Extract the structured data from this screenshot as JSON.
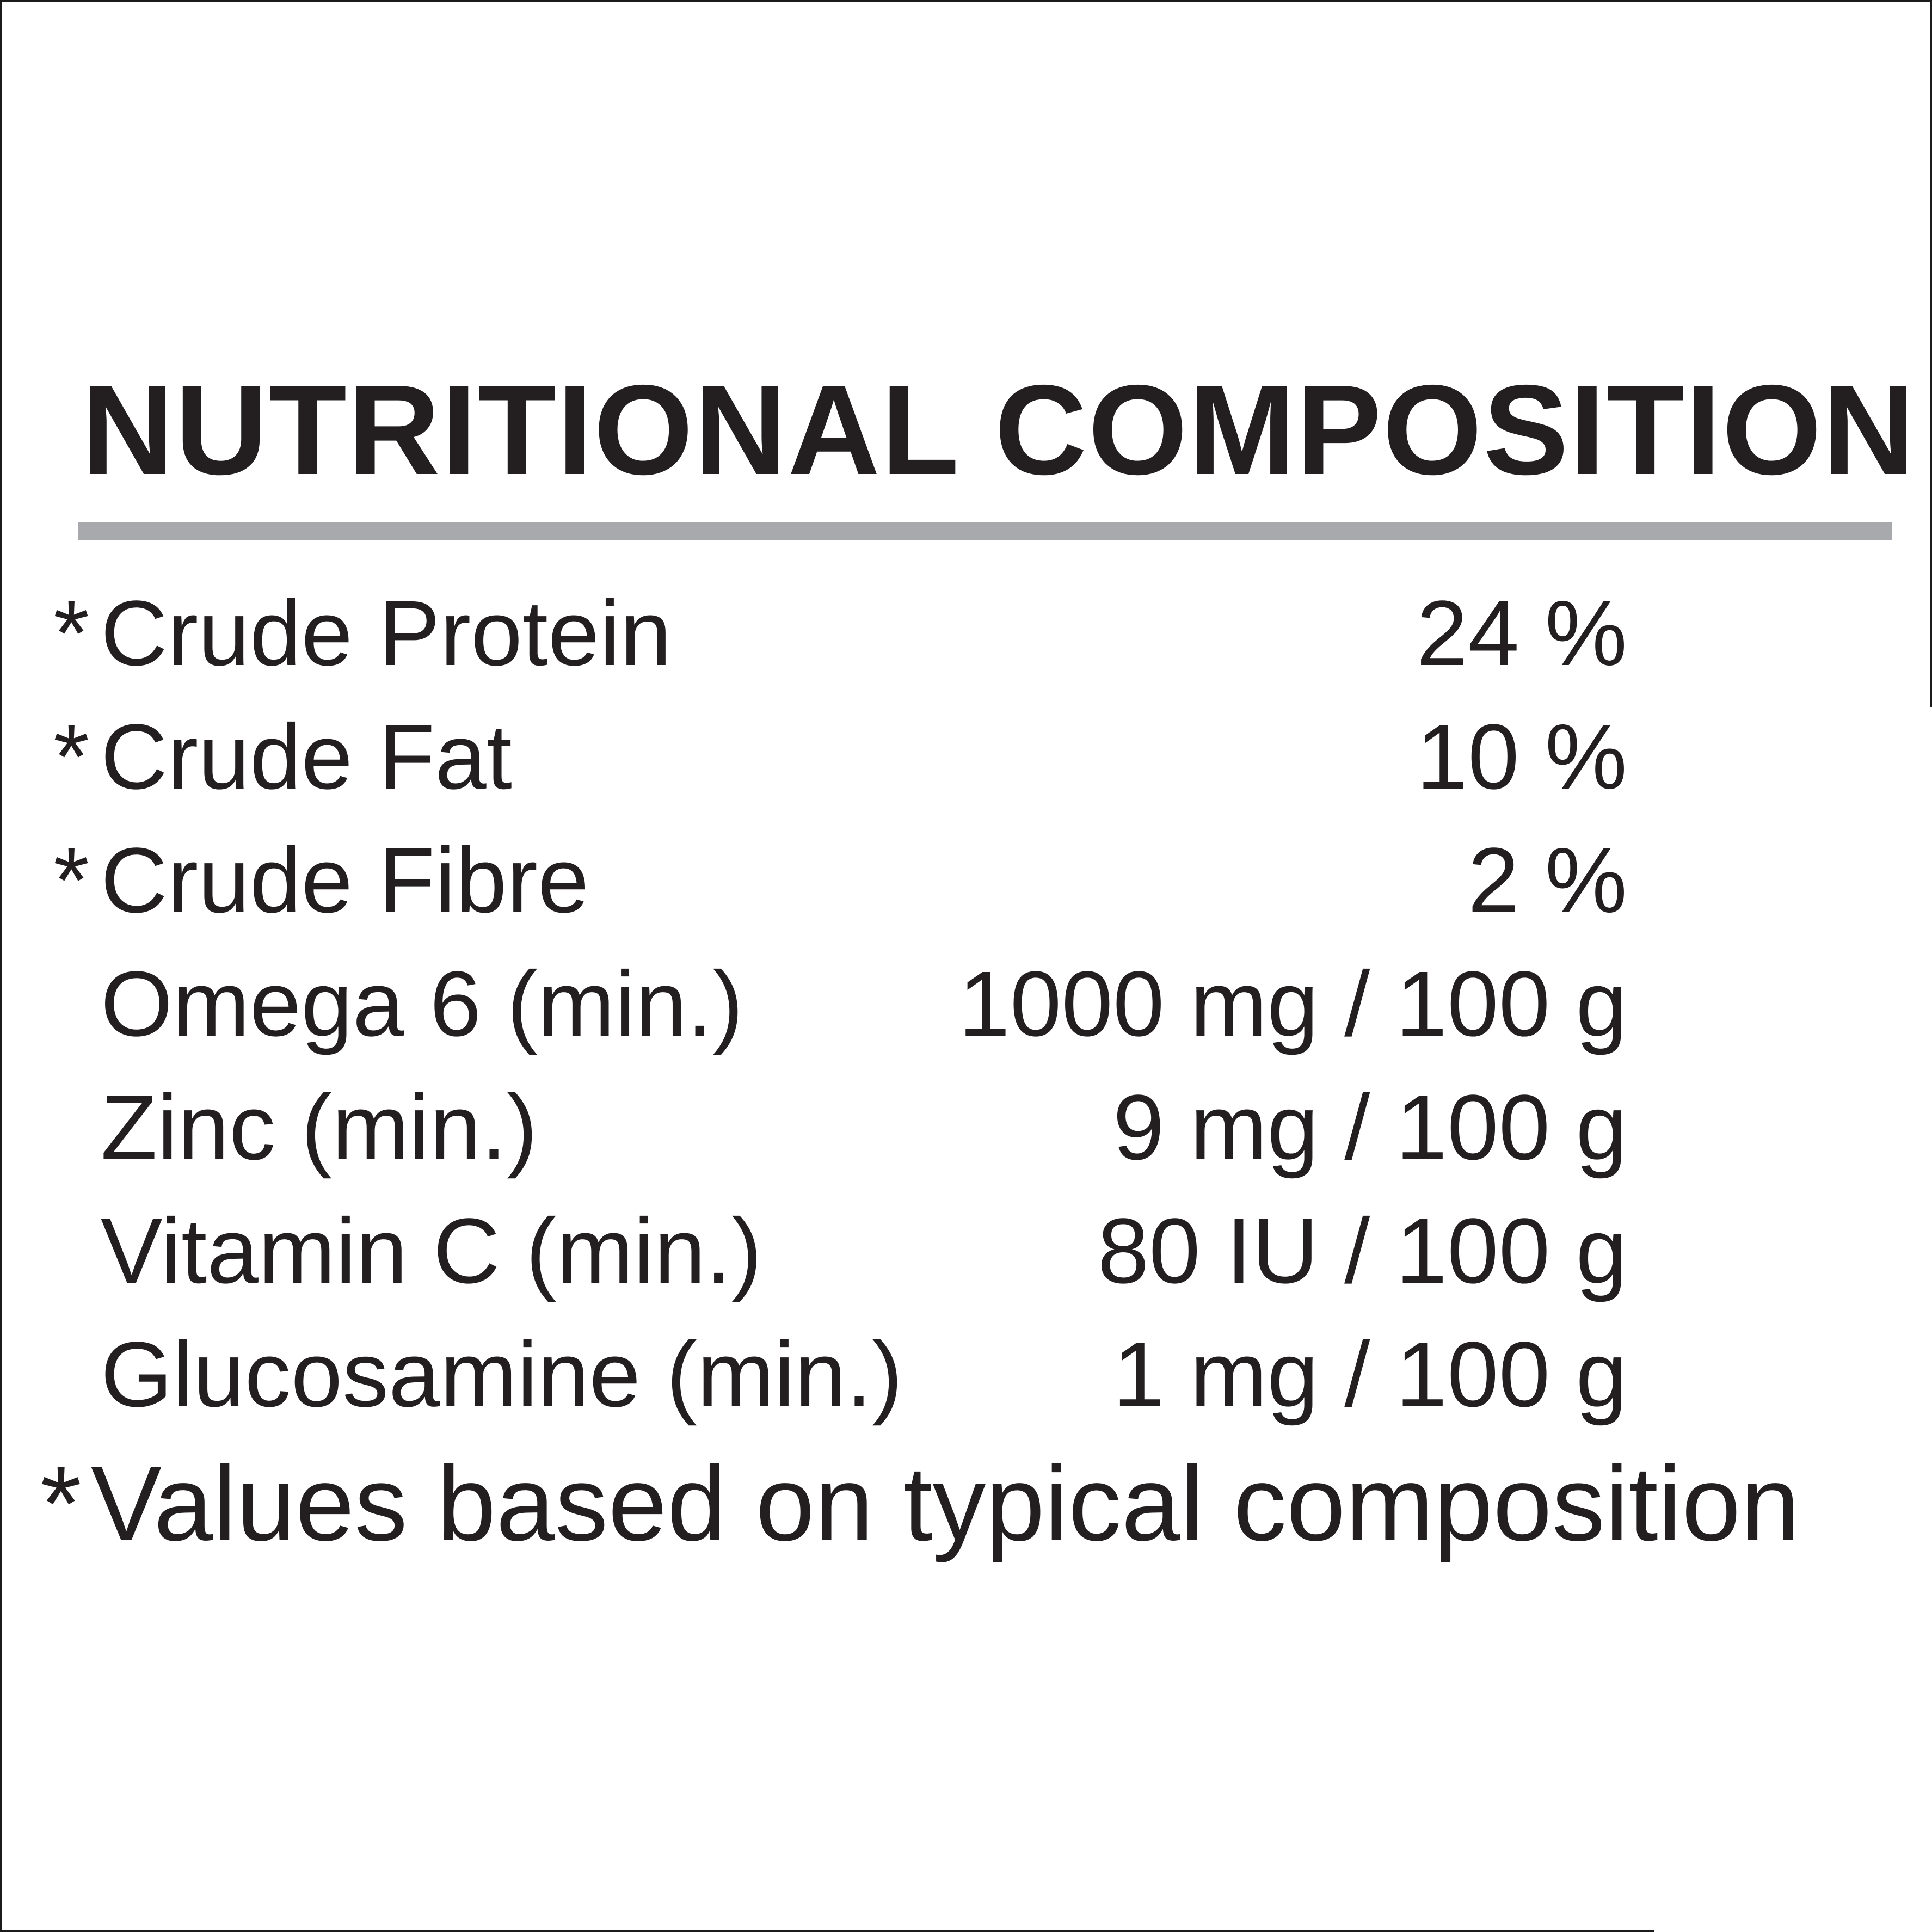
{
  "label": {
    "title": "NUTRITIONAL COMPOSITION",
    "rows": [
      {
        "prefix": "*",
        "name": "Crude Protein",
        "value": "24 %"
      },
      {
        "prefix": "*",
        "name": "Crude Fat",
        "value": "10 %"
      },
      {
        "prefix": "*",
        "name": "Crude Fibre",
        "value": "2 %"
      },
      {
        "prefix": "",
        "name": "Omega 6 (min.)",
        "value": "1000 mg / 100 g"
      },
      {
        "prefix": "",
        "name": "Zinc (min.)",
        "value": "9 mg / 100 g"
      },
      {
        "prefix": "",
        "name": "Vitamin C (min.)",
        "value": "80 IU / 100 g"
      },
      {
        "prefix": "",
        "name": "Glucosamine (min.)",
        "value": "1 mg / 100 g"
      }
    ],
    "footnote": {
      "prefix": "*",
      "text": "Values based on typical composition"
    }
  },
  "colors": {
    "background": "#ffffff",
    "text": "#231f20",
    "title_rule": "#a7a9ac",
    "frame": "#1b1b1b"
  }
}
